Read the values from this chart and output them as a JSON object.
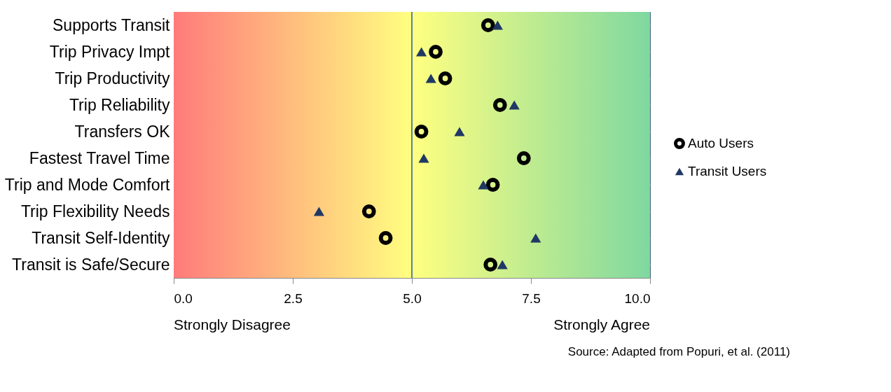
{
  "chart_data": {
    "type": "scatter",
    "categories": [
      "Supports Transit",
      "Trip Privacy Impt",
      "Trip Productivity",
      "Trip Reliability",
      "Transfers OK",
      "Fastest Travel Time",
      "Trip and Mode Comfort",
      "Trip Flexibility Needs",
      "Transit Self-Identity",
      "Transit is Safe/Secure"
    ],
    "orientation": "horizontal",
    "series": [
      {
        "name": "Auto Users",
        "color": "#000000",
        "marker": "circle",
        "values": [
          6.6,
          5.5,
          5.7,
          6.85,
          5.2,
          7.35,
          6.7,
          4.1,
          4.45,
          6.65
        ]
      },
      {
        "name": "Transit Users",
        "color": "#1f3864",
        "marker": "triangle",
        "values": [
          6.8,
          5.2,
          5.4,
          7.15,
          6.0,
          5.25,
          6.5,
          3.05,
          7.6,
          6.9
        ]
      }
    ],
    "xlim": [
      0,
      10
    ],
    "xticks": [
      {
        "value": 0,
        "label": "0.0"
      },
      {
        "value": 2.5,
        "label": "2.5"
      },
      {
        "value": 5,
        "label": "5.0"
      },
      {
        "value": 7.5,
        "label": "7.5"
      },
      {
        "value": 10,
        "label": "10.0"
      }
    ],
    "ref_lines": [
      {
        "axis": "x",
        "value": 5,
        "color": "#5b7fa6"
      }
    ],
    "grid": "y",
    "legend": "right",
    "annotations": [
      "Strongly Disagree",
      "Strongly Agree",
      "Source: Adapted from Popuri, et al. (2011)"
    ]
  }
}
